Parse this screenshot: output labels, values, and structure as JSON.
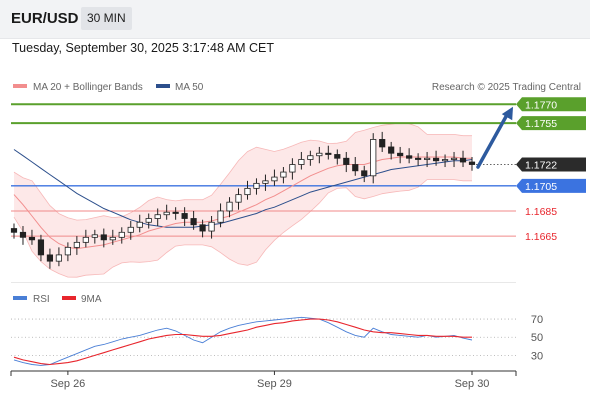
{
  "header": {
    "symbol": "EUR/USD",
    "timeframe": "30 MIN",
    "datetime": "Tuesday, September 30, 2025 3:17:48 AM CET"
  },
  "price_panel": {
    "legend": [
      {
        "label": "MA 20 + Bollinger Bands",
        "color": "#f28e8e"
      },
      {
        "label": "MA 50",
        "color": "#2c4f8c"
      }
    ],
    "credit": "Research © 2025 Trading Central",
    "levels": [
      {
        "value": 1.177,
        "label": "1.1770",
        "kind": "resistance",
        "color": "#5aa02c"
      },
      {
        "value": 1.1755,
        "label": "1.1755",
        "kind": "resistance",
        "color": "#5aa02c"
      },
      {
        "value": 1.1722,
        "label": "1.1722",
        "kind": "last-price",
        "color": "#2b2b2b"
      },
      {
        "value": 1.1705,
        "label": "1.1705",
        "kind": "pivot",
        "color": "#3b73e0"
      },
      {
        "value": 1.1685,
        "label": "1.1685",
        "kind": "support",
        "color": "#e8262d"
      },
      {
        "value": 1.1665,
        "label": "1.1665",
        "kind": "support",
        "color": "#e8262d"
      }
    ],
    "arrow": {
      "direction": "up",
      "from_price": 1.172,
      "to_price": 1.1768,
      "color": "#2d5a9e"
    },
    "y_range": [
      1.163,
      1.1775
    ]
  },
  "rsi_panel": {
    "legend": [
      {
        "label": "RSI",
        "color": "#4a7fd6"
      },
      {
        "label": "9MA",
        "color": "#e8262d"
      }
    ],
    "ticks": [
      "70",
      "50",
      "30"
    ],
    "tick_values": [
      70,
      50,
      30
    ],
    "y_range": [
      15,
      80
    ]
  },
  "x_axis": {
    "labels": [
      {
        "text": "Sep 26",
        "index": 6
      },
      {
        "text": "Sep 29",
        "index": 29
      },
      {
        "text": "Sep 30",
        "index": 51
      }
    ]
  },
  "chart_data": {
    "type": "candlestick",
    "title": "EUR/USD",
    "timeframe": "30 MIN",
    "x_labels": [
      "Sep 26",
      "Sep 29",
      "Sep 30"
    ],
    "price_levels": [
      1.177,
      1.1755,
      1.1722,
      1.1705,
      1.1685,
      1.1665
    ],
    "close": [
      1.1668,
      1.1664,
      1.1662,
      1.165,
      1.1645,
      1.165,
      1.1656,
      1.166,
      1.1664,
      1.1666,
      1.1662,
      1.1664,
      1.1668,
      1.1672,
      1.1676,
      1.1679,
      1.1682,
      1.1684,
      1.1683,
      1.1679,
      1.1674,
      1.1669,
      1.1676,
      1.1685,
      1.1692,
      1.1698,
      1.1703,
      1.1707,
      1.1709,
      1.1712,
      1.1716,
      1.1722,
      1.1726,
      1.1729,
      1.1731,
      1.173,
      1.1727,
      1.1722,
      1.1717,
      1.1713,
      1.1742,
      1.1736,
      1.1731,
      1.1729,
      1.1727,
      1.1726,
      1.1727,
      1.1725,
      1.1726,
      1.1727,
      1.1724,
      1.1722
    ],
    "series": [
      {
        "name": "MA 20",
        "values": [
          1.1698,
          1.169,
          1.1681,
          1.1672,
          1.1664,
          1.1659,
          1.1656,
          1.1655,
          1.1656,
          1.1657,
          1.1658,
          1.166,
          1.1662,
          1.1664,
          1.1666,
          1.1669,
          1.1671,
          1.1673,
          1.1675,
          1.1676,
          1.1676,
          1.1676,
          1.1677,
          1.1679,
          1.1681,
          1.1684,
          1.1687,
          1.169,
          1.1694,
          1.1697,
          1.1701,
          1.1705,
          1.1709,
          1.1713,
          1.1716,
          1.1719,
          1.1721,
          1.1722,
          1.1722,
          1.1722,
          1.1724,
          1.1726,
          1.1727,
          1.1728,
          1.1728,
          1.1728,
          1.1728,
          1.1728,
          1.1728,
          1.1728,
          1.1727,
          1.1727
        ]
      },
      {
        "name": "MA 50",
        "values": [
          1.1734,
          1.1729,
          1.1724,
          1.1719,
          1.1714,
          1.1709,
          1.1704,
          1.1699,
          1.1695,
          1.1691,
          1.1687,
          1.1684,
          1.1681,
          1.1678,
          1.1676,
          1.1674,
          1.1673,
          1.1672,
          1.1672,
          1.1672,
          1.1672,
          1.1673,
          1.1674,
          1.1675,
          1.1677,
          1.1679,
          1.1681,
          1.1683,
          1.1686,
          1.1688,
          1.1691,
          1.1694,
          1.1697,
          1.17,
          1.1702,
          1.1704,
          1.1706,
          1.1708,
          1.171,
          1.1712,
          1.1714,
          1.1716,
          1.1718,
          1.1719,
          1.172,
          1.1721,
          1.1722,
          1.1723,
          1.1724,
          1.1725,
          1.1725,
          1.1726
        ]
      },
      {
        "name": "RSI",
        "values": [
          25,
          22,
          20,
          19,
          20,
          24,
          28,
          32,
          36,
          40,
          42,
          45,
          48,
          50,
          52,
          55,
          58,
          60,
          57,
          52,
          47,
          44,
          50,
          56,
          60,
          63,
          65,
          67,
          68,
          69,
          70,
          71,
          72,
          71,
          70,
          66,
          61,
          56,
          52,
          50,
          60,
          56,
          53,
          52,
          51,
          50,
          52,
          50,
          51,
          52,
          49,
          47
        ]
      },
      {
        "name": "9MA",
        "values": [
          28,
          25,
          23,
          21,
          20,
          21,
          22,
          24,
          27,
          30,
          33,
          36,
          39,
          42,
          45,
          48,
          50,
          52,
          53,
          53,
          52,
          51,
          51,
          52,
          54,
          56,
          58,
          61,
          63,
          65,
          66,
          68,
          69,
          70,
          70,
          69,
          67,
          64,
          61,
          58,
          56,
          55,
          55,
          54,
          53,
          52,
          52,
          51,
          51,
          51,
          50,
          50
        ]
      }
    ]
  }
}
